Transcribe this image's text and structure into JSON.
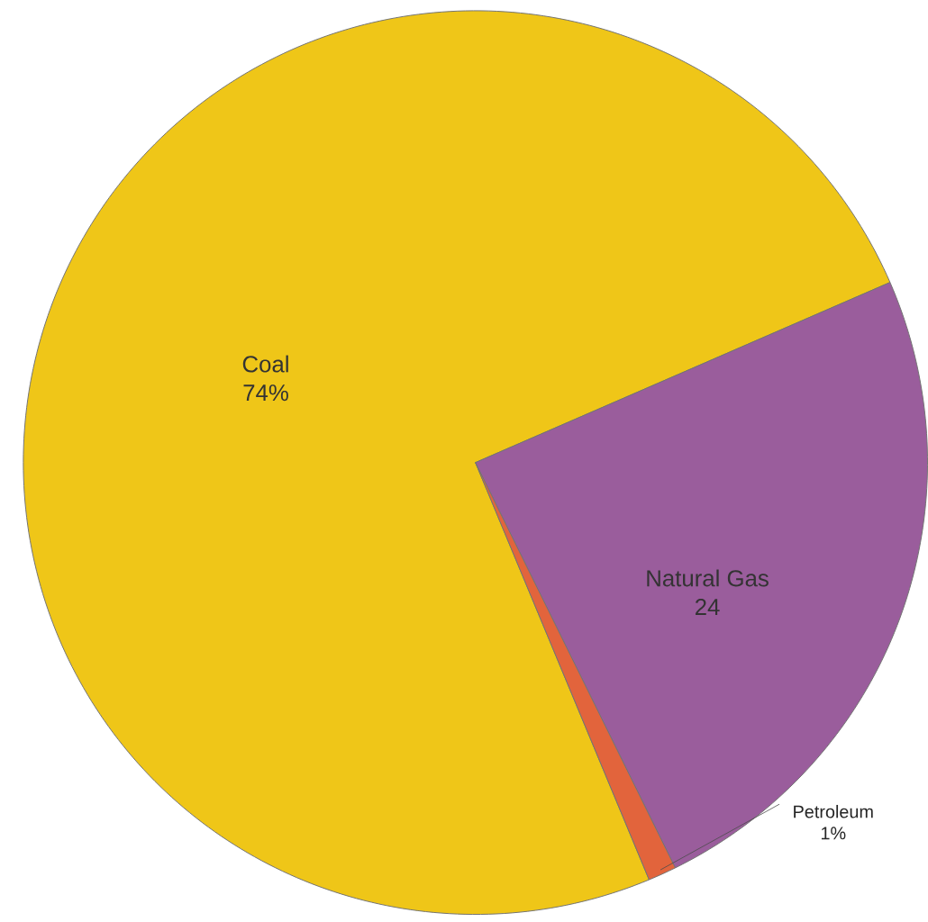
{
  "chart_data": {
    "type": "pie",
    "categories": [
      "Coal",
      "Natural Gas",
      "Petroleum"
    ],
    "values": [
      74,
      24,
      1
    ],
    "value_labels": [
      "74%",
      "24",
      "1%"
    ],
    "colors": [
      "#efc618",
      "#9a5d9c",
      "#e2643c"
    ]
  }
}
